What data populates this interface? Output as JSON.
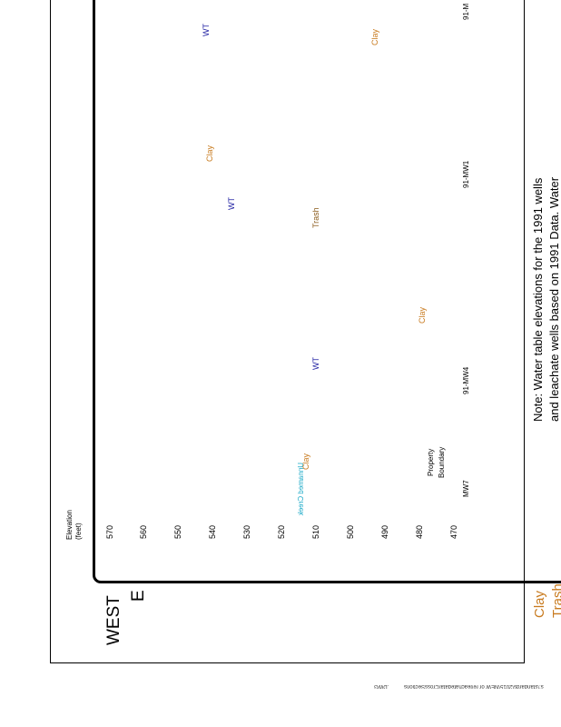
{
  "header": {
    "west_label": "WEST",
    "east_label": "E"
  },
  "axis": {
    "title_line1": "Elevation",
    "title_line2": "(feet)",
    "ticks": [
      "570",
      "560",
      "550",
      "540",
      "530",
      "520",
      "510",
      "500",
      "490",
      "480",
      "470"
    ]
  },
  "labels": {
    "creek": "Unnamed Creek",
    "property_line1": "Property",
    "property_line2": "Boundary"
  },
  "wells": {
    "mw7": "MW7",
    "mw4": "91-MW4",
    "mw1": "91-MW1",
    "mw_top": "91-M"
  },
  "annotations": {
    "wt": "WT",
    "clay": "Clay",
    "trash": "Trash"
  },
  "note": {
    "line1": "Note: Water table elevations for the 1991 wells",
    "line2": "and leachate wells based on 1991 Data. Water"
  },
  "legend": {
    "clay": "Clay",
    "trash": "Trash"
  },
  "footer": {
    "path_text": "s:\\standards\\2015\\NEW  or  re\\leachatedata\\CrossSections",
    "ext_text": ".DWG"
  }
}
